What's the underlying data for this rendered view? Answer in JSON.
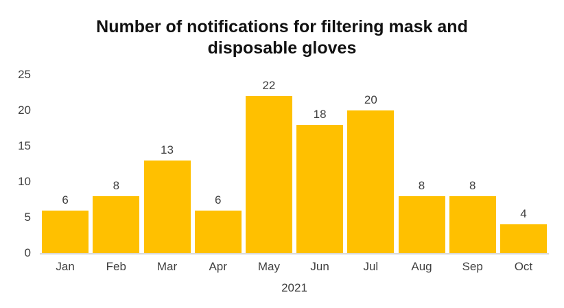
{
  "chart_data": {
    "type": "bar",
    "title": "Number of notifications for filtering mask and disposable gloves",
    "categories": [
      "Jan",
      "Feb",
      "Mar",
      "Apr",
      "May",
      "Jun",
      "Jul",
      "Aug",
      "Sep",
      "Oct"
    ],
    "values": [
      6,
      8,
      13,
      6,
      22,
      18,
      20,
      8,
      8,
      4
    ],
    "xlabel": "2021",
    "ylabel": "",
    "ylim": [
      0,
      25
    ],
    "yticks": [
      0,
      5,
      10,
      15,
      20,
      25
    ],
    "grid": false,
    "legend": false,
    "data_labels": true,
    "colors": {
      "bar": "#FFC000",
      "title_text": "#111111",
      "label_text": "#404040",
      "axis_line": "#D9D9D9",
      "background": "#FFFFFF"
    }
  }
}
